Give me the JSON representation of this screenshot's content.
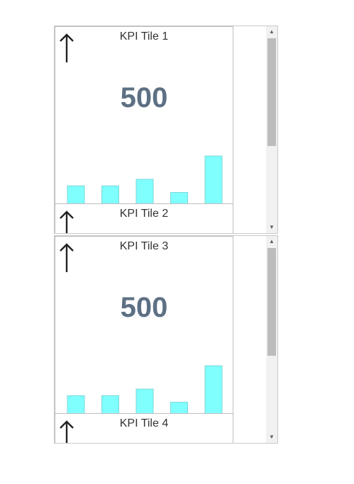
{
  "panels": [
    {
      "tiles": [
        {
          "title": "KPI Tile 1",
          "value": "500",
          "trend_icon": "arrow-up-icon"
        },
        {
          "title": "KPI Tile 2",
          "trend_icon": "arrow-up-icon"
        }
      ]
    },
    {
      "tiles": [
        {
          "title": "KPI Tile 3",
          "value": "500",
          "trend_icon": "arrow-up-icon"
        },
        {
          "title": "KPI Tile 4",
          "trend_icon": "arrow-up-icon"
        }
      ]
    }
  ],
  "chart_data": {
    "type": "bar",
    "categories": [
      "",
      "",
      "",
      "",
      ""
    ],
    "values": [
      25,
      25,
      34,
      16,
      66
    ],
    "ylim": [
      0,
      70
    ],
    "bar_color": "#80ffff",
    "bar_border": "#7ed6d6"
  },
  "scrollbar": {
    "up_glyph": "▲",
    "down_glyph": "▼"
  },
  "colors": {
    "value": "#5d7083",
    "title": "#333333",
    "border": "#c9c9c9"
  }
}
